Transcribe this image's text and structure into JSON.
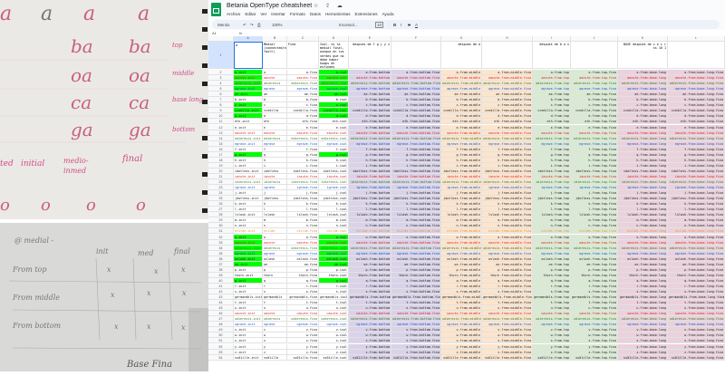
{
  "photos": {
    "top_note": {
      "letters_row": [
        "a",
        "a",
        "a",
        "a"
      ],
      "pairs": [
        {
          "glyph": "ba",
          "label": "top"
        },
        {
          "glyph": "oa",
          "label": "middle"
        },
        {
          "glyph": "ca",
          "label": "base long"
        },
        {
          "glyph": "ga",
          "label": "bottom"
        }
      ],
      "column_labels": [
        "ted",
        "initial",
        "medio-",
        "inmed",
        "final"
      ],
      "o_row": [
        "o",
        "o",
        "o",
        "o"
      ]
    },
    "bottom_note": {
      "heading": "@ medial -",
      "columns": [
        "init",
        "med",
        "final"
      ],
      "rows": [
        "From top",
        "From middle",
        "From bottom"
      ],
      "mark": "x",
      "footer": "Base Fina"
    }
  },
  "sheet": {
    "title": "Betania OpenType cheatsheet",
    "title_icons": "☆ ⇪ ☁",
    "menu": [
      "Archivo",
      "Editar",
      "Ver",
      "Insertar",
      "Formato",
      "Datos",
      "Herramientas",
      "Extensiones",
      "Ayuda"
    ],
    "toolbar": {
      "search": "Menús",
      "zoom": "100%",
      "font": "Inconsol...",
      "size": "10",
      "undo": "↶",
      "redo": "↷",
      "print": "⎙",
      "bold": "B",
      "italic": "I",
      "strike": "S",
      "color": "A"
    },
    "cell_ref": "A1",
    "fx": "fx",
    "column_letters": [
      "A",
      "B",
      "C",
      "D",
      "E",
      "F",
      "G",
      "H",
      "I",
      "J",
      "K",
      "L"
    ],
    "header_row": [
      "a",
      "Medial (connected/no fault)",
      "Fina",
      "Isol. vs la medial final, aunque en los verdes que no debe haber hoaps en esfinges",
      "despues de f g j y z",
      "",
      "despues de a",
      "",
      "despues de b o v",
      "",
      "BASE despues de c e i r ss 10 1",
      ""
    ],
    "column_suffixes": [
      ".init",
      "",
      ".fina",
      ".isol",
      ".from.bottom",
      ".from.bottom.fina",
      ".from.middle",
      ".from.middle.fina",
      ".from.top",
      ".from.top.fina",
      ".from.base.long",
      ".from.base.long.fina"
    ],
    "column_fills": [
      "#ffffff",
      "#ffffff",
      "#ffffff",
      "#ffffff",
      "#d9d2e9",
      "#d9d2e9",
      "#fce5cd",
      "#fce5cd",
      "#d9ead3",
      "#d9ead3",
      "#ead1dc",
      "#ead1dc"
    ],
    "highlight_color": "#00ff00",
    "text_colors": {
      "acute": "#e01b1b",
      "dieresis": "#38761d",
      "grave": "#1155cc",
      "tilde": "#e69138",
      "plain": "#222222"
    },
    "rows": [
      {
        "g": "a",
        "k": "plain",
        "hl": true
      },
      {
        "g": "aacute",
        "k": "acute",
        "hl": true
      },
      {
        "g": "adieresis",
        "k": "dieresis",
        "hl": true
      },
      {
        "g": "agrave",
        "k": "grave",
        "hl": true
      },
      {
        "g": "ae",
        "k": "plain",
        "hl": true
      },
      {
        "g": "b",
        "k": "plain"
      },
      {
        "g": "c",
        "k": "plain",
        "hl": true
      },
      {
        "g": "ccedilla",
        "k": "plain",
        "hl": true
      },
      {
        "g": "d",
        "k": "plain",
        "hl": true
      },
      {
        "g": "eth",
        "k": "plain"
      },
      {
        "g": "e",
        "k": "plain"
      },
      {
        "g": "eacute",
        "k": "acute"
      },
      {
        "g": "edieresis",
        "k": "dieresis"
      },
      {
        "g": "egrave",
        "k": "grave"
      },
      {
        "g": "f",
        "k": "plain"
      },
      {
        "g": "g",
        "k": "plain",
        "hl": true
      },
      {
        "g": "h",
        "k": "plain"
      },
      {
        "g": "i",
        "k": "plain"
      },
      {
        "g": "idotless",
        "k": "plain"
      },
      {
        "g": "iacute",
        "k": "acute"
      },
      {
        "g": "idieresis",
        "k": "dieresis"
      },
      {
        "g": "igrave",
        "k": "grave"
      },
      {
        "g": "j",
        "k": "plain"
      },
      {
        "g": "jdotless",
        "k": "plain"
      },
      {
        "g": "k",
        "k": "plain"
      },
      {
        "g": "l",
        "k": "plain"
      },
      {
        "g": "lslash",
        "k": "plain"
      },
      {
        "g": "m",
        "k": "plain"
      },
      {
        "g": "n",
        "k": "plain"
      },
      {
        "g": "ntilde",
        "k": "tilde"
      },
      {
        "g": "o",
        "k": "plain",
        "hl": true
      },
      {
        "g": "oacute",
        "k": "acute",
        "hl": true
      },
      {
        "g": "odieresis",
        "k": "dieresis",
        "hl": true
      },
      {
        "g": "ograve",
        "k": "grave",
        "hl": true
      },
      {
        "g": "oslash",
        "k": "plain",
        "hl": true
      },
      {
        "g": "oe",
        "k": "plain",
        "hl": true
      },
      {
        "g": "p",
        "k": "plain"
      },
      {
        "g": "thorn",
        "k": "plain"
      },
      {
        "g": "q",
        "k": "plain",
        "hl": true
      },
      {
        "g": "r",
        "k": "plain"
      },
      {
        "g": "s",
        "k": "plain"
      },
      {
        "g": "germandbls",
        "k": "plain"
      },
      {
        "g": "t",
        "k": "plain"
      },
      {
        "g": "u",
        "k": "plain"
      },
      {
        "g": "uacute",
        "k": "acute"
      },
      {
        "g": "udieresis",
        "k": "dieresis"
      },
      {
        "g": "ugrave",
        "k": "grave"
      },
      {
        "g": "v",
        "k": "plain"
      },
      {
        "g": "w",
        "k": "plain"
      },
      {
        "g": "x",
        "k": "plain"
      },
      {
        "g": "y",
        "k": "plain"
      },
      {
        "g": "z",
        "k": "plain"
      },
      {
        "g": "ss01ille",
        "k": "plain"
      }
    ]
  }
}
